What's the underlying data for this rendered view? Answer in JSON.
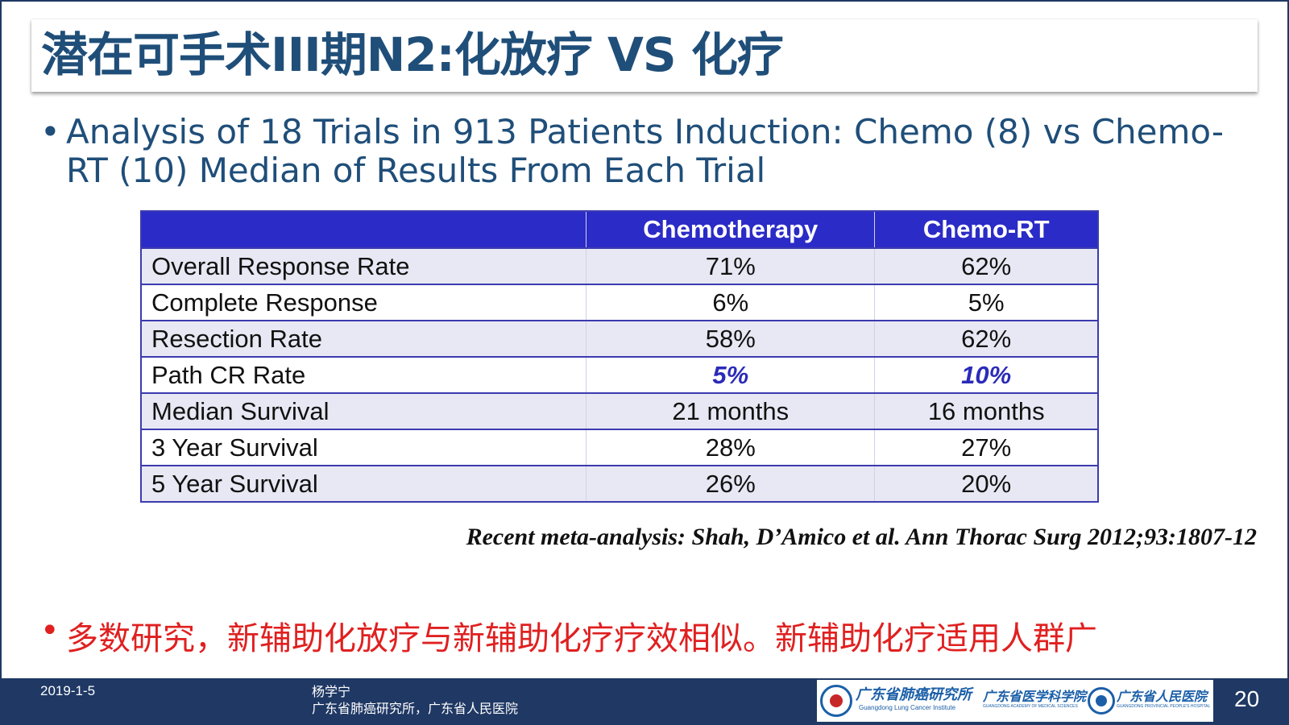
{
  "slide": {
    "title": "潜在可手术III期N2:化放疗 VS 化疗",
    "bullet_mark": "•",
    "bullet_text": "Analysis of 18 Trials in 913 Patients  Induction: Chemo (8) vs Chemo-RT (10)  Median of Results From Each Trial",
    "table": {
      "headers": [
        "",
        "Chemotherapy",
        "Chemo-RT"
      ],
      "rows": [
        {
          "label": "Overall Response Rate",
          "chemo": "71%",
          "chemo_rt": "62%"
        },
        {
          "label": "Complete Response",
          "chemo": "6%",
          "chemo_rt": "5%"
        },
        {
          "label": "Resection Rate",
          "chemo": "58%",
          "chemo_rt": "62%"
        },
        {
          "label": "Path CR Rate",
          "chemo": "5%",
          "chemo_rt": "10%"
        },
        {
          "label": "Median Survival",
          "chemo": "21 months",
          "chemo_rt": "16 months"
        },
        {
          "label": "3 Year Survival",
          "chemo": "28%",
          "chemo_rt": "27%"
        },
        {
          "label": "5 Year Survival",
          "chemo": "26%",
          "chemo_rt": "20%"
        }
      ]
    },
    "citation": "Recent meta-analysis: Shah, D’Amico et al. Ann Thorac Surg 2012;93:1807-12",
    "conclusion": "多数研究，新辅助化放疗与新辅助化疗疗效相似。新辅助化疗适用人群广"
  },
  "footer": {
    "date": "2019-1-5",
    "author": "杨学宁",
    "affiliation": "广东省肺癌研究所，广东省人民医院",
    "logos": [
      {
        "name": "广东省肺癌研究所",
        "sub": "Guangdong Lung Cancer Institute"
      },
      {
        "name": "广东省医学科学院",
        "sub": "GUANGDONG ACADEMY OF MEDICAL SCIENCES"
      },
      {
        "name": "广东省人民医院",
        "sub": "GUANGDONG PROVINCIAL PEOPLE'S HOSPITAL"
      }
    ],
    "page_number": "20"
  },
  "colors": {
    "title": "#1f4e79",
    "table_header": "#2b2bc7",
    "highlight": "#2b2bb8",
    "conclusion": "#e02020",
    "footer_bg": "#1f3864"
  }
}
